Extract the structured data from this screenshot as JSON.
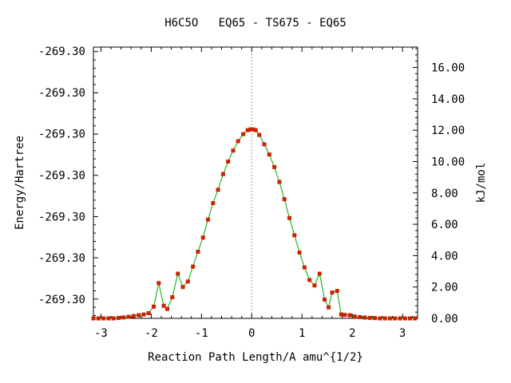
{
  "chart_data": {
    "type": "line",
    "title": "H6C5O   EQ65 - TS675 - EQ65",
    "xlabel": "Reaction Path Length/A amu^{1/2}",
    "ylabel_left": "Energy/Hartree",
    "ylabel_right": "kJ/mol",
    "xlim": [
      -3.15,
      3.3
    ],
    "xticks": [
      -3,
      -2,
      -1,
      0,
      1,
      2,
      3
    ],
    "xtick_labels": [
      "-3",
      "-2",
      "-1",
      "0",
      "1",
      "2",
      "3"
    ],
    "ylim_right": [
      0,
      17.3
    ],
    "yticks_right": [
      0,
      2,
      4,
      6,
      8,
      10,
      12,
      14,
      16
    ],
    "ytick_labels_right": [
      "0.00",
      "2.00",
      "4.00",
      "6.00",
      "8.00",
      "10.00",
      "12.00",
      "14.00",
      "16.00"
    ],
    "ytick_labels_left": [
      "-269.30",
      "-269.30",
      "-269.30",
      "-269.30",
      "-269.30",
      "-269.30",
      "-269.30"
    ],
    "ytick_left_kjmol": [
      1.23,
      3.86,
      6.5,
      9.13,
      11.77,
      14.4,
      17.04
    ],
    "ts_marker_x": 0,
    "series": [
      {
        "line_color": "#00aa00",
        "marker_color": "#cc2200",
        "x": [
          -3.15,
          -3.05,
          -2.95,
          -2.85,
          -2.75,
          -2.65,
          -2.55,
          -2.45,
          -2.35,
          -2.25,
          -2.15,
          -2.05,
          -1.95,
          -1.85,
          -1.75,
          -1.68,
          -1.58,
          -1.47,
          -1.37,
          -1.27,
          -1.17,
          -1.07,
          -0.97,
          -0.87,
          -0.77,
          -0.67,
          -0.57,
          -0.47,
          -0.37,
          -0.27,
          -0.17,
          -0.08,
          -0.03,
          0.03,
          0.08,
          0.15,
          0.25,
          0.35,
          0.45,
          0.55,
          0.65,
          0.75,
          0.85,
          0.95,
          1.05,
          1.15,
          1.25,
          1.35,
          1.45,
          1.53,
          1.6,
          1.7,
          1.78,
          1.85,
          1.95,
          2.05,
          2.15,
          2.25,
          2.35,
          2.45,
          2.55,
          2.65,
          2.75,
          2.85,
          2.95,
          3.05,
          3.15,
          3.25
        ],
        "y": [
          0.0,
          0.0,
          0.0,
          0.0,
          0.0,
          0.03,
          0.06,
          0.1,
          0.15,
          0.2,
          0.25,
          0.33,
          0.75,
          2.25,
          0.8,
          0.6,
          1.35,
          2.85,
          2.0,
          2.35,
          3.3,
          4.25,
          5.15,
          6.3,
          7.35,
          8.2,
          9.2,
          10.0,
          10.7,
          11.3,
          11.75,
          12.0,
          12.05,
          12.05,
          12.0,
          11.7,
          11.1,
          10.45,
          9.65,
          8.7,
          7.6,
          6.4,
          5.3,
          4.2,
          3.25,
          2.45,
          2.1,
          2.85,
          1.2,
          0.7,
          1.65,
          1.75,
          0.25,
          0.22,
          0.2,
          0.12,
          0.08,
          0.05,
          0.03,
          0.02,
          0.0,
          0.0,
          0.0,
          0.0,
          0.0,
          0.0,
          0.0,
          0.0
        ]
      }
    ]
  }
}
